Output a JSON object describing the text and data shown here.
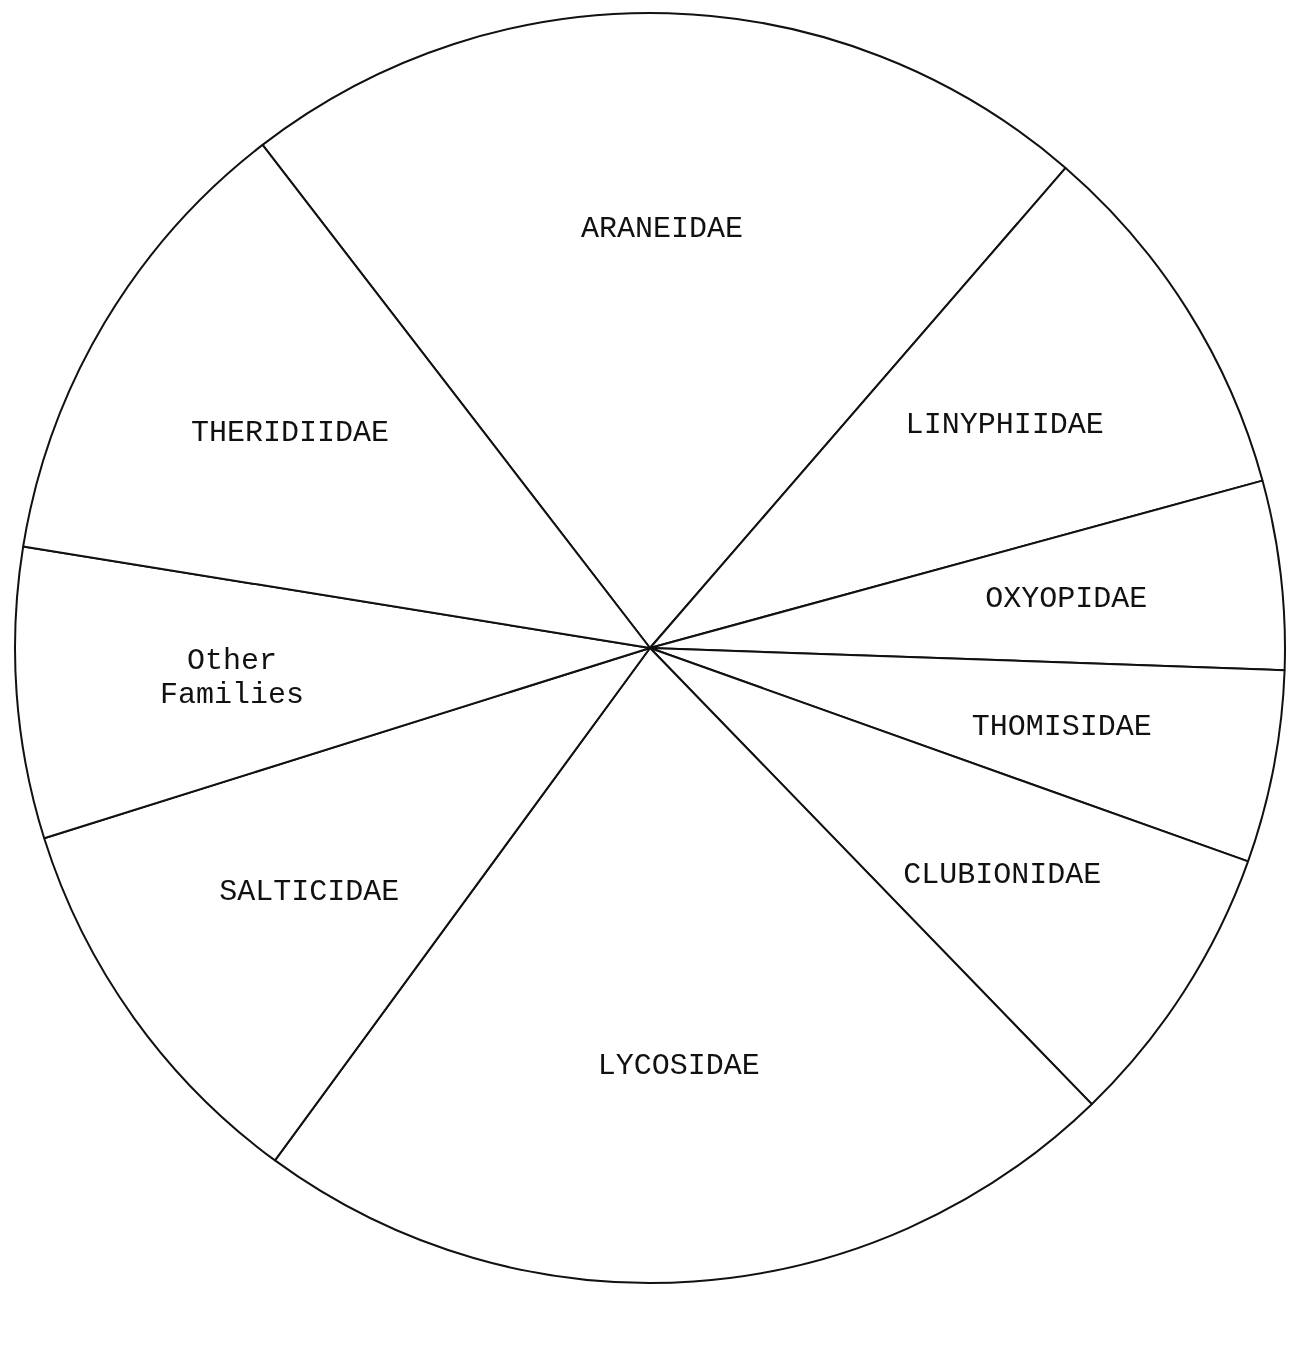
{
  "chart_data": {
    "type": "pie",
    "categories": [
      "ARANEIDAE",
      "LINYPHIIDAE",
      "OXYOPIDAE",
      "THOMISIDAE",
      "CLUBIONIDAE",
      "LYCOSIDAE",
      "SALTICIDAE",
      "Other Families",
      "THERIDIIDAE"
    ],
    "values": [
      21.8,
      9.4,
      4.8,
      4.9,
      7.3,
      22.3,
      10.1,
      7.4,
      12.0
    ],
    "colors": [
      "#ffffff",
      "#ffffff",
      "#ffffff",
      "#ffffff",
      "#ffffff",
      "#ffffff",
      "#ffffff",
      "#ffffff",
      "#ffffff"
    ],
    "legend": false
  }
}
